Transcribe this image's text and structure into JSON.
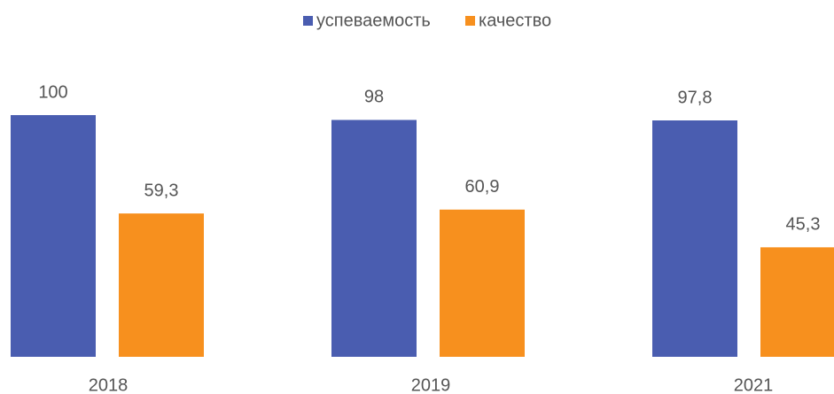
{
  "chart_data": {
    "type": "bar",
    "categories": [
      "2018",
      "2019",
      "2021"
    ],
    "series": [
      {
        "name": "успеваемость",
        "color": "#4a5db0",
        "values": [
          100,
          98,
          97.8
        ],
        "value_labels": [
          "100",
          "98",
          "97,8"
        ]
      },
      {
        "name": "качество",
        "color": "#f7901e",
        "values": [
          59.3,
          60.9,
          45.3
        ],
        "value_labels": [
          "59,3",
          "60,9",
          "45,3"
        ]
      }
    ]
  }
}
